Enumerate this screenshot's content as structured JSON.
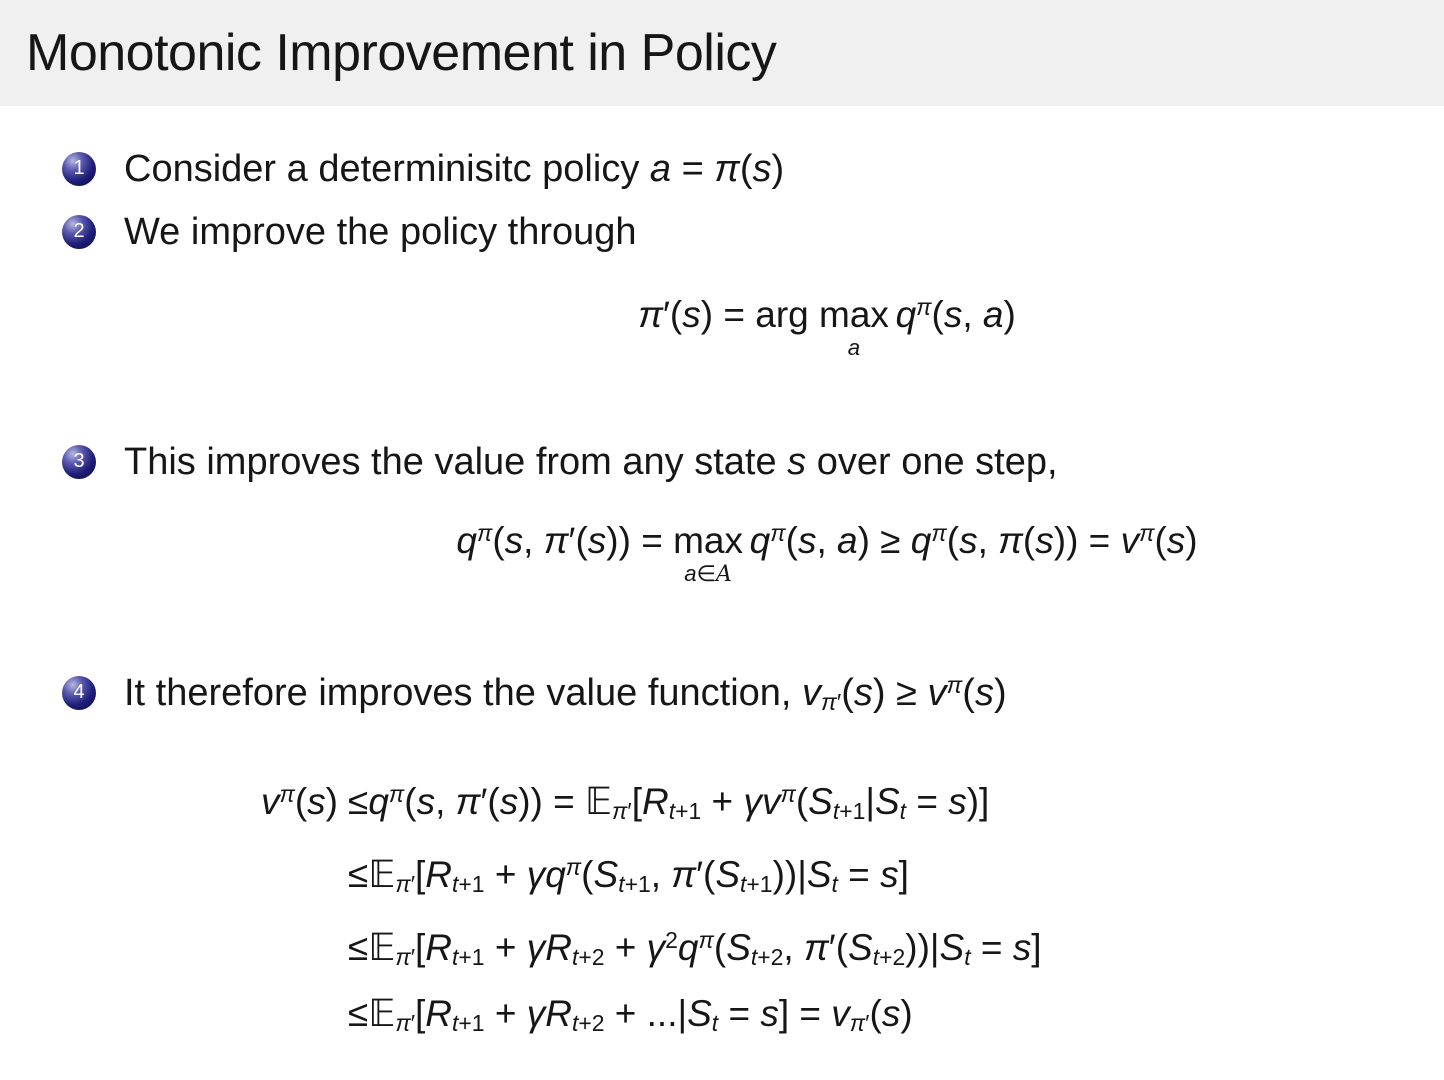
{
  "slide": {
    "title": "Monotonic Improvement in Policy",
    "colors": {
      "body_bg": "#ffffff",
      "title_band_bg": "#f0f0f0",
      "text": "#161616",
      "bullet_ball_main": "#1e1e78",
      "bullet_ball_dark": "#0a0a38",
      "bullet_ball_highlight": "#b8b8e0",
      "bullet_number": "#ffffff"
    },
    "items": [
      {
        "number": "1",
        "text": "Consider a determinisitc policy a = π(s)",
        "tokens": [
          {
            "r": "Consider a determinisitc policy "
          },
          {
            "i": "a"
          },
          {
            "r": " = "
          },
          {
            "i": "π"
          },
          {
            "r": "("
          },
          {
            "i": "s"
          },
          {
            "r": ")"
          }
        ]
      },
      {
        "number": "2",
        "text": "We improve the policy through",
        "tokens": [
          {
            "r": "We improve the policy through"
          }
        ]
      },
      {
        "number": "3",
        "text": "This improves the value from any state s over one step,",
        "tokens": [
          {
            "r": "This improves the value from any state "
          },
          {
            "i": "s"
          },
          {
            "r": " over one step,"
          }
        ]
      },
      {
        "number": "4",
        "text": "It therefore improves the value function, v_π′(s) ≥ v^π(s)",
        "tokens": [
          {
            "r": "It therefore improves the value function, "
          },
          {
            "i": "v"
          },
          {
            "sub": [
              {
                "i": "π"
              },
              {
                "r": "′"
              }
            ]
          },
          {
            "r": "("
          },
          {
            "i": "s"
          },
          {
            "r": ") ≥ "
          },
          {
            "i": "v"
          },
          {
            "sup": [
              {
                "i": "π"
              }
            ]
          },
          {
            "r": "("
          },
          {
            "i": "s"
          },
          {
            "r": ")"
          }
        ]
      }
    ],
    "formulas": {
      "policy_improvement": {
        "text": "π′(s) = arg max_a q^π(s, a)",
        "tokens": [
          {
            "i": "π"
          },
          {
            "r": "′("
          },
          {
            "i": "s"
          },
          {
            "r": ") = arg "
          },
          {
            "stack": {
              "top": [
                {
                  "r": "max"
                }
              ],
              "bot": [
                {
                  "i": "a"
                }
              ]
            }
          },
          {
            "sp": 0.18
          },
          {
            "i": "q"
          },
          {
            "sup": [
              {
                "i": "π"
              }
            ]
          },
          {
            "r": "("
          },
          {
            "i": "s"
          },
          {
            "r": ", "
          },
          {
            "i": "a"
          },
          {
            "r": ")"
          }
        ]
      },
      "one_step": {
        "text": "q^π(s, π′(s)) = max_{a∈A} q^π(s, a) ≥ q^π(s, π(s)) = v^π(s)",
        "tokens": [
          {
            "i": "q"
          },
          {
            "sup": [
              {
                "i": "π"
              }
            ]
          },
          {
            "r": "("
          },
          {
            "i": "s"
          },
          {
            "r": ", "
          },
          {
            "i": "π"
          },
          {
            "r": "′("
          },
          {
            "i": "s"
          },
          {
            "r": ")) = "
          },
          {
            "stack": {
              "top": [
                {
                  "r": "max"
                }
              ],
              "bot": [
                {
                  "i": "a"
                },
                {
                  "r": "∈"
                },
                {
                  "cal": "A"
                }
              ]
            }
          },
          {
            "sp": 0.18
          },
          {
            "i": "q"
          },
          {
            "sup": [
              {
                "i": "π"
              }
            ]
          },
          {
            "r": "("
          },
          {
            "i": "s"
          },
          {
            "r": ", "
          },
          {
            "i": "a"
          },
          {
            "r": ") ≥ "
          },
          {
            "i": "q"
          },
          {
            "sup": [
              {
                "i": "π"
              }
            ]
          },
          {
            "r": "("
          },
          {
            "i": "s"
          },
          {
            "r": ", "
          },
          {
            "i": "π"
          },
          {
            "r": "("
          },
          {
            "i": "s"
          },
          {
            "r": ")) = "
          },
          {
            "i": "v"
          },
          {
            "sup": [
              {
                "i": "π"
              }
            ]
          },
          {
            "r": "("
          },
          {
            "i": "s"
          },
          {
            "r": ")"
          }
        ]
      },
      "derivation": [
        {
          "text": "v^π(s) ≤ q^π(s, π′(s)) = E_π′[R_t+1 + γv^π(S_t+1|S_t = s)]",
          "lhs": [
            {
              "i": "v"
            },
            {
              "sup": [
                {
                  "i": "π"
                }
              ]
            },
            {
              "r": "("
            },
            {
              "i": "s"
            },
            {
              "r": ")"
            }
          ],
          "rhs": [
            {
              "r": "≤"
            },
            {
              "i": "q"
            },
            {
              "sup": [
                {
                  "i": "π"
                }
              ]
            },
            {
              "r": "("
            },
            {
              "i": "s"
            },
            {
              "r": ", "
            },
            {
              "i": "π"
            },
            {
              "r": "′("
            },
            {
              "i": "s"
            },
            {
              "r": ")) = "
            },
            {
              "bb": "𝔼"
            },
            {
              "sub": [
                {
                  "i": "π"
                },
                {
                  "r": "′"
                }
              ]
            },
            {
              "r": "["
            },
            {
              "i": "R"
            },
            {
              "sub": [
                {
                  "i": "t"
                },
                {
                  "r": "+1"
                }
              ]
            },
            {
              "r": " + "
            },
            {
              "i": "γv"
            },
            {
              "sup": [
                {
                  "i": "π"
                }
              ]
            },
            {
              "r": "("
            },
            {
              "i": "S"
            },
            {
              "sub": [
                {
                  "i": "t"
                },
                {
                  "r": "+1"
                }
              ]
            },
            {
              "r": "|"
            },
            {
              "i": "S"
            },
            {
              "sub": [
                {
                  "i": "t"
                }
              ]
            },
            {
              "r": " = "
            },
            {
              "i": "s"
            },
            {
              "r": ")]"
            }
          ]
        },
        {
          "text": "≤ E_π′[R_t+1 + γq^π(S_t+1, π′(S_t+1))|S_t = s]",
          "lhs": [],
          "rhs": [
            {
              "r": "≤"
            },
            {
              "bb": "𝔼"
            },
            {
              "sub": [
                {
                  "i": "π"
                },
                {
                  "r": "′"
                }
              ]
            },
            {
              "r": "["
            },
            {
              "i": "R"
            },
            {
              "sub": [
                {
                  "i": "t"
                },
                {
                  "r": "+1"
                }
              ]
            },
            {
              "r": " + "
            },
            {
              "i": "γq"
            },
            {
              "sup": [
                {
                  "i": "π"
                }
              ]
            },
            {
              "r": "("
            },
            {
              "i": "S"
            },
            {
              "sub": [
                {
                  "i": "t"
                },
                {
                  "r": "+1"
                }
              ]
            },
            {
              "r": ", "
            },
            {
              "i": "π"
            },
            {
              "r": "′("
            },
            {
              "i": "S"
            },
            {
              "sub": [
                {
                  "i": "t"
                },
                {
                  "r": "+1"
                }
              ]
            },
            {
              "r": "))|"
            },
            {
              "i": "S"
            },
            {
              "sub": [
                {
                  "i": "t"
                }
              ]
            },
            {
              "r": " = "
            },
            {
              "i": "s"
            },
            {
              "r": "]"
            }
          ]
        },
        {
          "text": "≤ E_π′[R_t+1 + γR_t+2 + γ²q^π(S_t+2, π′(S_t+2))|S_t = s]",
          "lhs": [],
          "rhs": [
            {
              "r": "≤"
            },
            {
              "bb": "𝔼"
            },
            {
              "sub": [
                {
                  "i": "π"
                },
                {
                  "r": "′"
                }
              ]
            },
            {
              "r": "["
            },
            {
              "i": "R"
            },
            {
              "sub": [
                {
                  "i": "t"
                },
                {
                  "r": "+1"
                }
              ]
            },
            {
              "r": " + "
            },
            {
              "i": "γR"
            },
            {
              "sub": [
                {
                  "i": "t"
                },
                {
                  "r": "+2"
                }
              ]
            },
            {
              "r": " + "
            },
            {
              "i": "γ"
            },
            {
              "sup": [
                {
                  "r": "2"
                }
              ]
            },
            {
              "i": "q"
            },
            {
              "sup": [
                {
                  "i": "π"
                }
              ]
            },
            {
              "r": "("
            },
            {
              "i": "S"
            },
            {
              "sub": [
                {
                  "i": "t"
                },
                {
                  "r": "+2"
                }
              ]
            },
            {
              "r": ", "
            },
            {
              "i": "π"
            },
            {
              "r": "′("
            },
            {
              "i": "S"
            },
            {
              "sub": [
                {
                  "i": "t"
                },
                {
                  "r": "+2"
                }
              ]
            },
            {
              "r": "))|"
            },
            {
              "i": "S"
            },
            {
              "sub": [
                {
                  "i": "t"
                }
              ]
            },
            {
              "r": " = "
            },
            {
              "i": "s"
            },
            {
              "r": "]"
            }
          ]
        },
        {
          "text": "≤ E_π′[R_t+1 + γR_t+2 + ...|S_t = s] = v_π′(s)",
          "lhs": [],
          "rhs": [
            {
              "r": "≤"
            },
            {
              "bb": "𝔼"
            },
            {
              "sub": [
                {
                  "i": "π"
                },
                {
                  "r": "′"
                }
              ]
            },
            {
              "r": "["
            },
            {
              "i": "R"
            },
            {
              "sub": [
                {
                  "i": "t"
                },
                {
                  "r": "+1"
                }
              ]
            },
            {
              "r": " + "
            },
            {
              "i": "γR"
            },
            {
              "sub": [
                {
                  "i": "t"
                },
                {
                  "r": "+2"
                }
              ]
            },
            {
              "r": " + ...|"
            },
            {
              "i": "S"
            },
            {
              "sub": [
                {
                  "i": "t"
                }
              ]
            },
            {
              "r": " = "
            },
            {
              "i": "s"
            },
            {
              "r": "] = "
            },
            {
              "i": "v"
            },
            {
              "sub": [
                {
                  "i": "π"
                },
                {
                  "r": "′"
                }
              ]
            },
            {
              "r": "("
            },
            {
              "i": "s"
            },
            {
              "r": ")"
            }
          ]
        }
      ]
    }
  }
}
